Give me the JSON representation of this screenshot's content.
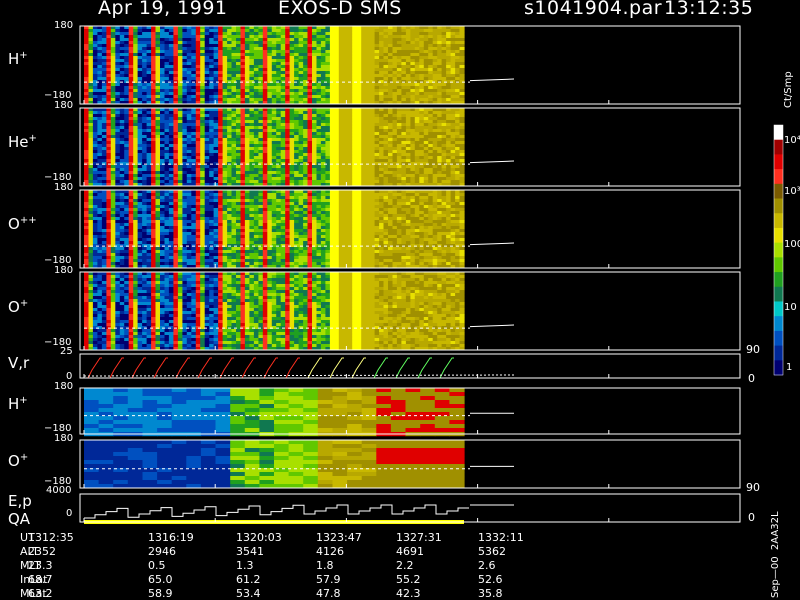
{
  "header": {
    "date": "Apr 19, 1991",
    "mission": "EXOS-D SMS",
    "file": "s1041904.par",
    "time": "13:12:35"
  },
  "panels": [
    {
      "label": "H",
      "charge": "+",
      "ytop": "180",
      "ybot": "−180"
    },
    {
      "label": "He",
      "charge": "+",
      "ytop": "180",
      "ybot": "−180"
    },
    {
      "label": "O",
      "charge": "++",
      "ytop": "180",
      "ybot": "−180"
    },
    {
      "label": "O",
      "charge": "+",
      "ytop": "180",
      "ybot": "−180"
    },
    {
      "label": "V,r",
      "charge": "",
      "ytop": "25",
      "ybot": "0"
    },
    {
      "label": "H",
      "charge": "+",
      "ytop": "180",
      "ybot": "−180"
    },
    {
      "label": "O",
      "charge": "+",
      "ytop": "180",
      "ybot": "−180"
    },
    {
      "label": "E,p",
      "charge": "",
      "ytop": "4000",
      "ybot": "0"
    }
  ],
  "qa_label": "QA",
  "right_ticks": {
    "top": "90",
    "bottom": "0"
  },
  "colorbar": {
    "title": "Ct/Smp",
    "labels": [
      "10⁴",
      "10³",
      "100",
      "10",
      "1"
    ],
    "colors": [
      "#ffffff",
      "#a00000",
      "#e00000",
      "#ff3020",
      "#7a5a00",
      "#a09000",
      "#c8b800",
      "#e8e000",
      "#a8e000",
      "#60c800",
      "#20a020",
      "#107850",
      "#00c8c8",
      "#0088d0",
      "#0050c0",
      "#002898",
      "#000070"
    ]
  },
  "footer": {
    "rows": [
      {
        "label": "UT",
        "values": [
          "1312:35",
          "1316:19",
          "1320:03",
          "1323:47",
          "1327:31",
          "1332:11"
        ]
      },
      {
        "label": "ALT",
        "values": [
          "2352",
          "2946",
          "3541",
          "4126",
          "4691",
          "5362"
        ]
      },
      {
        "label": "MLT",
        "values": [
          "23.3",
          "0.5",
          "1.3",
          "1.8",
          "2.2",
          "2.6"
        ]
      },
      {
        "label": "InLat",
        "values": [
          "68.7",
          "65.0",
          "61.2",
          "57.9",
          "55.2",
          "52.6"
        ]
      },
      {
        "label": "MLat",
        "values": [
          "63.2",
          "58.9",
          "53.4",
          "47.8",
          "42.3",
          "35.8"
        ]
      }
    ]
  },
  "side_note": "Sep—00  2AA32L",
  "chart_data": {
    "type": "heatmap",
    "title": "Apr 19, 1991   EXOS-D SMS",
    "x_ticks": [
      "1312:35",
      "1316:19",
      "1320:03",
      "1323:47",
      "1327:31",
      "1332:11"
    ],
    "panels": [
      "H+",
      "He+",
      "O++",
      "O+",
      "V,r",
      "H+",
      "O+",
      "E,p"
    ],
    "angle_range": [
      -180,
      180
    ],
    "vr_range": [
      0,
      25
    ],
    "energy_range": [
      0,
      4000
    ],
    "colorbar_range_ct_per_smp": [
      1,
      10000
    ],
    "colorbar_scale": "log",
    "spin_period_columns": 17,
    "data_end_fraction": 0.49
  }
}
